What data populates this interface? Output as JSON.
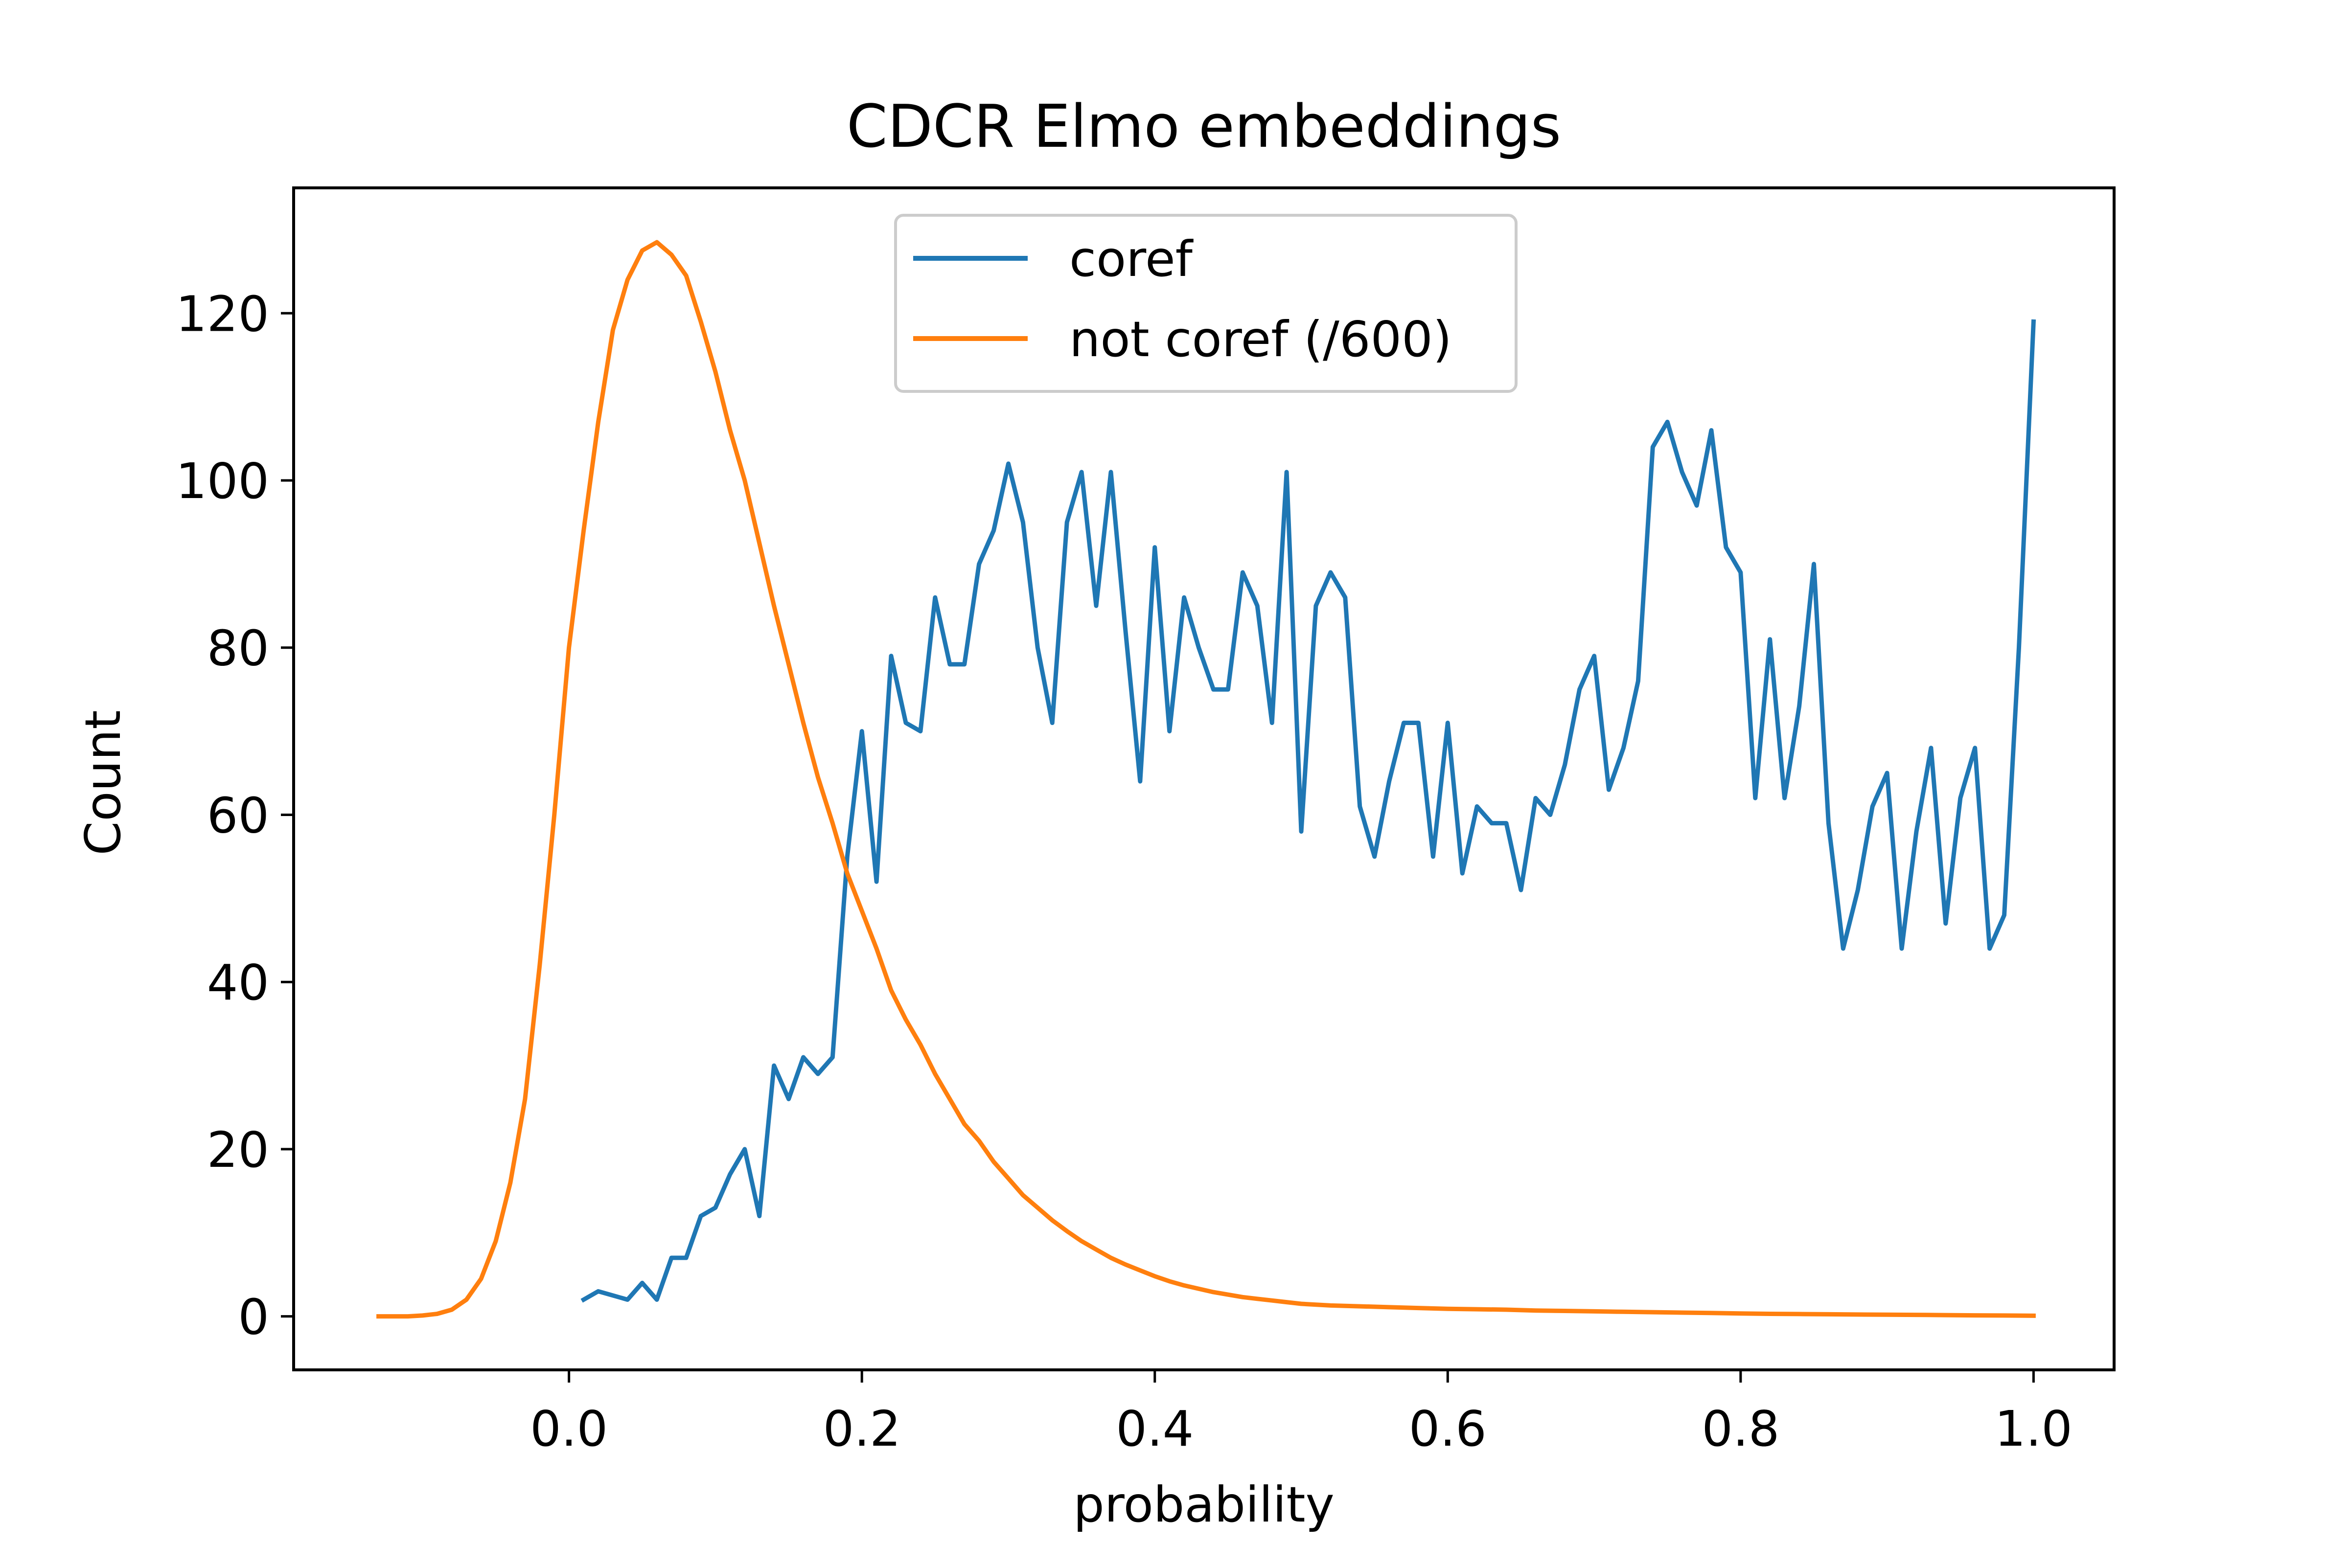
{
  "chart_data": {
    "type": "line",
    "title": "CDCR Elmo embeddings",
    "xlabel": "probability",
    "ylabel": "Count",
    "xlim": [
      -0.188,
      1.055
    ],
    "ylim": [
      -6.4,
      135
    ],
    "xticks": [
      0.0,
      0.2,
      0.4,
      0.6,
      0.8,
      1.0
    ],
    "xtick_labels": [
      "0.0",
      "0.2",
      "0.4",
      "0.6",
      "0.8",
      "1.0"
    ],
    "yticks": [
      0,
      20,
      40,
      60,
      80,
      100,
      120
    ],
    "ytick_labels": [
      "0",
      "20",
      "40",
      "60",
      "80",
      "100",
      "120"
    ],
    "grid": false,
    "legend_position": "top-center",
    "series": [
      {
        "name": "coref",
        "color": "#1f77b4",
        "x": [
          0.01,
          0.02,
          0.03,
          0.04,
          0.05,
          0.06,
          0.07,
          0.08,
          0.09,
          0.1,
          0.11,
          0.12,
          0.13,
          0.14,
          0.15,
          0.16,
          0.17,
          0.18,
          0.19,
          0.2,
          0.21,
          0.22,
          0.23,
          0.24,
          0.25,
          0.26,
          0.27,
          0.28,
          0.29,
          0.3,
          0.31,
          0.32,
          0.33,
          0.34,
          0.35,
          0.36,
          0.37,
          0.38,
          0.39,
          0.4,
          0.41,
          0.42,
          0.43,
          0.44,
          0.45,
          0.46,
          0.47,
          0.48,
          0.49,
          0.5,
          0.51,
          0.52,
          0.53,
          0.54,
          0.55,
          0.56,
          0.57,
          0.58,
          0.59,
          0.6,
          0.61,
          0.62,
          0.63,
          0.64,
          0.65,
          0.66,
          0.67,
          0.68,
          0.69,
          0.7,
          0.71,
          0.72,
          0.73,
          0.74,
          0.75,
          0.76,
          0.77,
          0.78,
          0.79,
          0.8,
          0.81,
          0.82,
          0.83,
          0.84,
          0.85,
          0.86,
          0.87,
          0.88,
          0.89,
          0.9,
          0.91,
          0.92,
          0.93,
          0.94,
          0.95,
          0.96,
          0.97,
          0.98,
          0.99,
          1.0
        ],
        "y": [
          2,
          3,
          2.5,
          2,
          4,
          2,
          7,
          7,
          12,
          13,
          17,
          20,
          12,
          30,
          26,
          31,
          29,
          31,
          55,
          70,
          52,
          79,
          71,
          70,
          86,
          78,
          78,
          90,
          94,
          102,
          95,
          80,
          71,
          95,
          101,
          85,
          101,
          82,
          64,
          92,
          70,
          86,
          80,
          75,
          75,
          89,
          85,
          71,
          101,
          58,
          85,
          89,
          86,
          61,
          55,
          64,
          71,
          71,
          55,
          71,
          53,
          61,
          59,
          59,
          51,
          62,
          60,
          66,
          75,
          79,
          63,
          68,
          76,
          104,
          107,
          101,
          97,
          106,
          92,
          89,
          62,
          81,
          62,
          73,
          90,
          59,
          44,
          51,
          61,
          65,
          44,
          58,
          68,
          47,
          62,
          68,
          44,
          48,
          80,
          119
        ]
      },
      {
        "name": "not coref (/600)",
        "color": "#ff7f0e",
        "x": [
          -0.13,
          -0.12,
          -0.11,
          -0.1,
          -0.09,
          -0.08,
          -0.07,
          -0.06,
          -0.05,
          -0.04,
          -0.03,
          -0.02,
          -0.01,
          0.0,
          0.01,
          0.02,
          0.03,
          0.04,
          0.05,
          0.06,
          0.07,
          0.08,
          0.09,
          0.1,
          0.11,
          0.12,
          0.13,
          0.14,
          0.15,
          0.16,
          0.17,
          0.18,
          0.19,
          0.2,
          0.21,
          0.22,
          0.23,
          0.24,
          0.25,
          0.26,
          0.27,
          0.28,
          0.29,
          0.3,
          0.31,
          0.32,
          0.33,
          0.34,
          0.35,
          0.36,
          0.37,
          0.38,
          0.39,
          0.4,
          0.41,
          0.42,
          0.43,
          0.44,
          0.45,
          0.46,
          0.47,
          0.48,
          0.49,
          0.5,
          0.52,
          0.54,
          0.56,
          0.58,
          0.6,
          0.62,
          0.64,
          0.66,
          0.68,
          0.7,
          0.72,
          0.74,
          0.76,
          0.78,
          0.8,
          0.82,
          0.84,
          0.86,
          0.88,
          0.9,
          0.92,
          0.94,
          0.96,
          0.98,
          1.0
        ],
        "y": [
          0,
          0,
          0,
          0.1,
          0.3,
          0.8,
          2,
          4.5,
          9,
          16,
          26,
          42,
          60,
          80,
          94,
          107,
          118,
          124,
          127.5,
          128.5,
          127,
          124.5,
          119,
          113,
          106,
          100,
          92.5,
          85,
          78,
          71,
          64.5,
          59,
          53,
          48.5,
          44,
          39,
          35.5,
          32.5,
          29,
          26,
          23,
          21,
          18.5,
          16.5,
          14.5,
          13,
          11.5,
          10.2,
          9,
          8,
          7,
          6.2,
          5.5,
          4.8,
          4.2,
          3.7,
          3.3,
          2.9,
          2.6,
          2.3,
          2.1,
          1.9,
          1.7,
          1.5,
          1.3,
          1.2,
          1.1,
          1.0,
          0.9,
          0.85,
          0.8,
          0.7,
          0.65,
          0.6,
          0.55,
          0.5,
          0.45,
          0.4,
          0.35,
          0.3,
          0.28,
          0.25,
          0.22,
          0.2,
          0.18,
          0.15,
          0.12,
          0.1,
          0.08
        ]
      }
    ]
  }
}
